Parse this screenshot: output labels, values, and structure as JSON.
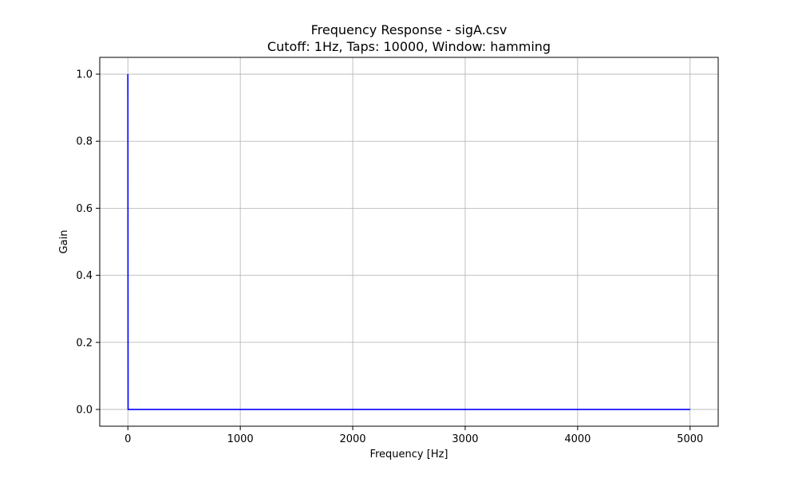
{
  "chart_data": {
    "type": "line",
    "title": "Frequency Response - sigA.csv",
    "subtitle": "Cutoff: 1Hz, Taps: 10000, Window: hamming",
    "xlabel": "Frequency [Hz]",
    "ylabel": "Gain",
    "xlim": [
      -250,
      5250
    ],
    "ylim": [
      -0.05,
      1.05
    ],
    "xticks": [
      0,
      1000,
      2000,
      3000,
      4000,
      5000
    ],
    "xtick_labels": [
      "0",
      "1000",
      "2000",
      "3000",
      "4000",
      "5000"
    ],
    "yticks": [
      0.0,
      0.2,
      0.4,
      0.6,
      0.8,
      1.0
    ],
    "ytick_labels": [
      "0.0",
      "0.2",
      "0.4",
      "0.6",
      "0.8",
      "1.0"
    ],
    "grid": true,
    "series": [
      {
        "color": "#0000ff",
        "x": [
          0,
          0.5,
          1,
          2,
          5,
          10,
          100,
          1000,
          2000,
          3000,
          4000,
          5000
        ],
        "y": [
          1.0,
          0.75,
          0.5,
          0.0,
          0.0,
          0.0,
          0.0,
          0.0,
          0.0,
          0.0,
          0.0,
          0.0
        ]
      }
    ]
  }
}
